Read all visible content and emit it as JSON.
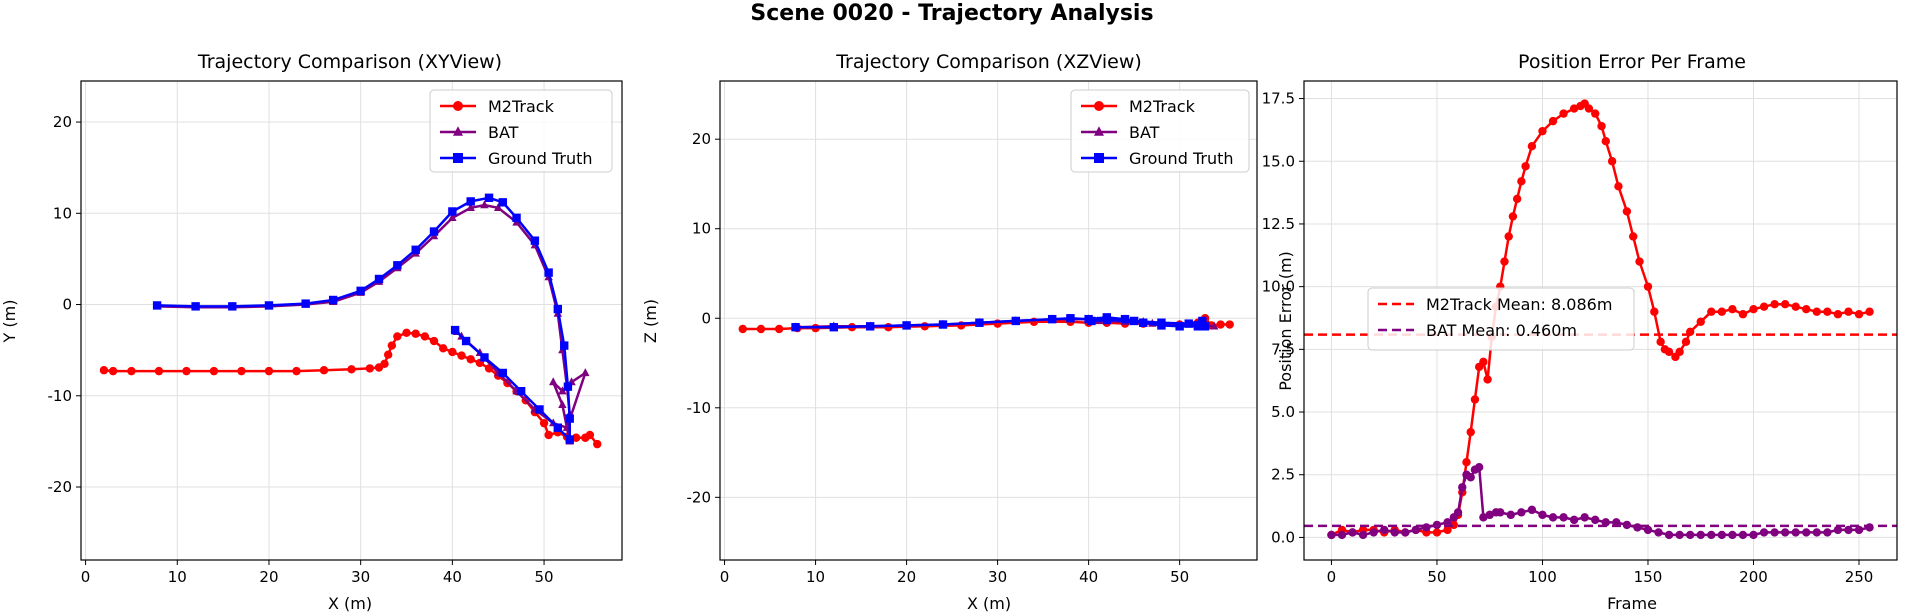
{
  "figure": {
    "title": "Scene 0020 - Trajectory Analysis"
  },
  "colors": {
    "m2track": "#ff0000",
    "bat": "#800080",
    "gt": "#0000ff",
    "grid": "#e0e0e0"
  },
  "chart_data": [
    {
      "type": "line",
      "title": "Trajectory Comparison (XYView)",
      "xlabel": "X (m)",
      "ylabel": "Y (m)",
      "xlim": [
        -0.5,
        58.5
      ],
      "ylim": [
        -28,
        24.5
      ],
      "xticks": [
        0,
        10,
        20,
        30,
        40,
        50
      ],
      "yticks": [
        -20,
        -10,
        0,
        10,
        20
      ],
      "grid": true,
      "legend": "top-right",
      "series": [
        {
          "name": "M2Track",
          "marker": "circle",
          "color": "#ff0000",
          "points": [
            [
              2,
              -7.2
            ],
            [
              3,
              -7.3
            ],
            [
              5,
              -7.3
            ],
            [
              8,
              -7.3
            ],
            [
              11,
              -7.3
            ],
            [
              14,
              -7.3
            ],
            [
              17,
              -7.3
            ],
            [
              20,
              -7.3
            ],
            [
              23,
              -7.3
            ],
            [
              26,
              -7.2
            ],
            [
              29,
              -7.1
            ],
            [
              31,
              -7.0
            ],
            [
              32,
              -6.9
            ],
            [
              32.6,
              -6.5
            ],
            [
              33,
              -5.5
            ],
            [
              33.4,
              -4.5
            ],
            [
              34,
              -3.5
            ],
            [
              35,
              -3.1
            ],
            [
              36,
              -3.2
            ],
            [
              37,
              -3.5
            ],
            [
              38,
              -4.0
            ],
            [
              39,
              -4.8
            ],
            [
              40,
              -5.2
            ],
            [
              41,
              -5.6
            ],
            [
              42,
              -6.0
            ],
            [
              43,
              -6.4
            ],
            [
              44,
              -7.0
            ],
            [
              45,
              -7.8
            ],
            [
              46,
              -8.6
            ],
            [
              47,
              -9.5
            ],
            [
              48,
              -10.5
            ],
            [
              49,
              -11.8
            ],
            [
              50,
              -13.0
            ],
            [
              50.5,
              -14.3
            ],
            [
              51.5,
              -14.0
            ],
            [
              52.5,
              -14.5
            ],
            [
              53.5,
              -14.6
            ],
            [
              54.5,
              -14.6
            ],
            [
              55,
              -14.3
            ],
            [
              55.8,
              -15.3
            ]
          ]
        },
        {
          "name": "BAT",
          "marker": "triangle",
          "color": "#800080",
          "points": [
            [
              7.8,
              -0.2
            ],
            [
              12,
              -0.3
            ],
            [
              16,
              -0.3
            ],
            [
              20,
              -0.2
            ],
            [
              24,
              0.0
            ],
            [
              27,
              0.3
            ],
            [
              30,
              1.3
            ],
            [
              32,
              2.5
            ],
            [
              34,
              4.0
            ],
            [
              36,
              5.6
            ],
            [
              38,
              7.5
            ],
            [
              40,
              9.5
            ],
            [
              42,
              10.6
            ],
            [
              43.5,
              10.9
            ],
            [
              45,
              10.6
            ],
            [
              47,
              9.0
            ],
            [
              49,
              6.5
            ],
            [
              50.5,
              3.0
            ],
            [
              51.5,
              -1.0
            ],
            [
              52,
              -5.0
            ],
            [
              52.5,
              -9.0
            ],
            [
              52.8,
              -12.0
            ],
            [
              52.8,
              -15.0
            ],
            [
              52,
              -11.0
            ],
            [
              51,
              -8.5
            ],
            [
              52,
              -9.5
            ],
            [
              53,
              -8.5
            ],
            [
              54.5,
              -7.5
            ],
            [
              52.5,
              -13.5
            ],
            [
              51,
              -13.0
            ],
            [
              49,
              -11.5
            ],
            [
              47,
              -9.5
            ],
            [
              45,
              -7.5
            ],
            [
              43,
              -5.3
            ],
            [
              41,
              -3.5
            ],
            [
              40.5,
              -3.0
            ]
          ]
        },
        {
          "name": "Ground Truth",
          "marker": "square",
          "color": "#0000ff",
          "points": [
            [
              7.8,
              -0.1
            ],
            [
              12,
              -0.2
            ],
            [
              16,
              -0.2
            ],
            [
              20,
              -0.1
            ],
            [
              24,
              0.1
            ],
            [
              27,
              0.5
            ],
            [
              30,
              1.5
            ],
            [
              32,
              2.8
            ],
            [
              34,
              4.3
            ],
            [
              36,
              6.0
            ],
            [
              38,
              8.0
            ],
            [
              40,
              10.2
            ],
            [
              42,
              11.3
            ],
            [
              44,
              11.7
            ],
            [
              45.5,
              11.2
            ],
            [
              47,
              9.5
            ],
            [
              49,
              7.0
            ],
            [
              50.5,
              3.5
            ],
            [
              51.5,
              -0.5
            ],
            [
              52.2,
              -4.5
            ],
            [
              52.6,
              -9.0
            ],
            [
              52.8,
              -12.5
            ],
            [
              52.8,
              -14.8
            ],
            [
              51.5,
              -13.5
            ],
            [
              49.5,
              -11.5
            ],
            [
              47.5,
              -9.5
            ],
            [
              45.5,
              -7.5
            ],
            [
              43.5,
              -5.8
            ],
            [
              41.5,
              -4.0
            ],
            [
              40.3,
              -2.8
            ]
          ]
        }
      ]
    },
    {
      "type": "line",
      "title": "Trajectory Comparison (XZView)",
      "xlabel": "X (m)",
      "ylabel": "Z (m)",
      "xlim": [
        -0.5,
        58.5
      ],
      "ylim": [
        -27,
        26.5
      ],
      "xticks": [
        0,
        10,
        20,
        30,
        40,
        50
      ],
      "yticks": [
        -20,
        -10,
        0,
        10,
        20
      ],
      "grid": true,
      "legend": "top-right",
      "series": [
        {
          "name": "M2Track",
          "marker": "circle",
          "color": "#ff0000",
          "points": [
            [
              2,
              -1.2
            ],
            [
              4,
              -1.2
            ],
            [
              6,
              -1.2
            ],
            [
              8,
              -1.1
            ],
            [
              10,
              -1.1
            ],
            [
              14,
              -1.0
            ],
            [
              18,
              -1.0
            ],
            [
              22,
              -0.9
            ],
            [
              26,
              -0.8
            ],
            [
              30,
              -0.6
            ],
            [
              34,
              -0.4
            ],
            [
              38,
              -0.4
            ],
            [
              40,
              -0.5
            ],
            [
              42,
              -0.5
            ],
            [
              44,
              -0.6
            ],
            [
              46,
              -0.6
            ],
            [
              48,
              -0.7
            ],
            [
              50,
              -0.7
            ],
            [
              52,
              -0.5
            ],
            [
              52.8,
              0.0
            ],
            [
              53.5,
              -0.8
            ],
            [
              54.5,
              -0.7
            ],
            [
              55.5,
              -0.7
            ]
          ]
        },
        {
          "name": "BAT",
          "marker": "triangle",
          "color": "#800080",
          "points": [
            [
              7.8,
              -1.0
            ],
            [
              12,
              -0.9
            ],
            [
              16,
              -0.9
            ],
            [
              20,
              -0.8
            ],
            [
              24,
              -0.7
            ],
            [
              28,
              -0.5
            ],
            [
              32,
              -0.3
            ],
            [
              36,
              -0.1
            ],
            [
              40,
              -0.1
            ],
            [
              42,
              0.0
            ],
            [
              44,
              -0.1
            ],
            [
              46,
              -0.4
            ],
            [
              48,
              -0.7
            ],
            [
              50,
              -0.8
            ],
            [
              52,
              -0.8
            ],
            [
              53.8,
              -0.9
            ],
            [
              52.5,
              -0.8
            ],
            [
              50,
              -0.7
            ],
            [
              47,
              -0.6
            ],
            [
              44,
              -0.4
            ],
            [
              41,
              -0.3
            ]
          ]
        },
        {
          "name": "Ground Truth",
          "marker": "square",
          "color": "#0000ff",
          "points": [
            [
              7.8,
              -1.0
            ],
            [
              12,
              -1.0
            ],
            [
              16,
              -0.9
            ],
            [
              20,
              -0.8
            ],
            [
              24,
              -0.7
            ],
            [
              28,
              -0.5
            ],
            [
              32,
              -0.3
            ],
            [
              36,
              -0.1
            ],
            [
              38,
              0.0
            ],
            [
              40,
              -0.1
            ],
            [
              42,
              0.1
            ],
            [
              44,
              -0.1
            ],
            [
              46,
              -0.5
            ],
            [
              48,
              -0.8
            ],
            [
              50,
              -0.9
            ],
            [
              52,
              -0.9
            ],
            [
              52.8,
              -0.9
            ],
            [
              52.5,
              -0.3
            ],
            [
              51,
              -0.6
            ],
            [
              48,
              -0.5
            ],
            [
              45,
              -0.3
            ],
            [
              42,
              -0.2
            ],
            [
              40.3,
              -0.3
            ]
          ]
        }
      ]
    },
    {
      "type": "line",
      "title": "Position Error Per Frame",
      "xlabel": "Frame",
      "ylabel": "Position Error (m)",
      "xlim": [
        -13,
        268
      ],
      "ylim": [
        -0.9,
        18.2
      ],
      "xticks": [
        0,
        50,
        100,
        150,
        200,
        250
      ],
      "yticks": [
        0.0,
        2.5,
        5.0,
        7.5,
        10.0,
        12.5,
        15.0,
        17.5
      ],
      "ytick_labels": [
        "0.0",
        "2.5",
        "5.0",
        "7.5",
        "10.0",
        "12.5",
        "15.0",
        "17.5"
      ],
      "grid": true,
      "legend": "center-left",
      "series": [
        {
          "name": "M2Track",
          "marker": "circle",
          "color": "#ff0000",
          "x": [
            0,
            5,
            10,
            15,
            20,
            25,
            30,
            35,
            40,
            45,
            50,
            55,
            58,
            60,
            62,
            64,
            66,
            68,
            70,
            72,
            74,
            76,
            78,
            80,
            82,
            84,
            86,
            88,
            90,
            92,
            95,
            100,
            105,
            110,
            115,
            118,
            120,
            122,
            125,
            128,
            130,
            133,
            136,
            140,
            143,
            146,
            150,
            153,
            156,
            158,
            160,
            163,
            165,
            168,
            170,
            175,
            180,
            185,
            190,
            195,
            200,
            205,
            210,
            215,
            220,
            225,
            230,
            235,
            240,
            245,
            250,
            255
          ],
          "y": [
            0.1,
            0.3,
            0.2,
            0.3,
            0.3,
            0.2,
            0.3,
            0.2,
            0.3,
            0.2,
            0.2,
            0.3,
            0.5,
            0.9,
            1.8,
            3.0,
            4.2,
            5.5,
            6.8,
            7.0,
            6.3,
            8.0,
            9.2,
            10.0,
            11.0,
            12.0,
            12.8,
            13.5,
            14.2,
            14.8,
            15.6,
            16.2,
            16.6,
            16.9,
            17.1,
            17.2,
            17.3,
            17.1,
            16.9,
            16.4,
            15.8,
            15.0,
            14.0,
            13.0,
            12.0,
            11.0,
            10.0,
            9.0,
            7.8,
            7.5,
            7.4,
            7.2,
            7.4,
            7.8,
            8.2,
            8.6,
            9.0,
            9.0,
            9.1,
            8.9,
            9.1,
            9.2,
            9.3,
            9.3,
            9.2,
            9.1,
            9.0,
            9.0,
            8.9,
            9.0,
            8.9,
            9.0
          ]
        },
        {
          "name": "BAT",
          "marker": "circle",
          "color": "#800080",
          "x": [
            0,
            5,
            10,
            15,
            20,
            25,
            30,
            35,
            40,
            45,
            50,
            55,
            58,
            60,
            62,
            64,
            66,
            68,
            70,
            72,
            75,
            78,
            80,
            85,
            90,
            95,
            100,
            105,
            110,
            115,
            120,
            125,
            130,
            135,
            140,
            145,
            150,
            155,
            160,
            165,
            170,
            175,
            180,
            185,
            190,
            195,
            200,
            205,
            210,
            215,
            220,
            225,
            230,
            235,
            240,
            245,
            250,
            255
          ],
          "y": [
            0.1,
            0.1,
            0.2,
            0.1,
            0.2,
            0.3,
            0.2,
            0.2,
            0.3,
            0.4,
            0.5,
            0.6,
            0.8,
            1.0,
            2.0,
            2.5,
            2.4,
            2.7,
            2.8,
            0.8,
            0.9,
            1.0,
            1.0,
            0.9,
            1.0,
            1.1,
            0.9,
            0.8,
            0.8,
            0.7,
            0.8,
            0.7,
            0.6,
            0.6,
            0.5,
            0.4,
            0.3,
            0.2,
            0.1,
            0.1,
            0.1,
            0.1,
            0.1,
            0.1,
            0.1,
            0.1,
            0.1,
            0.2,
            0.2,
            0.2,
            0.2,
            0.2,
            0.2,
            0.2,
            0.3,
            0.3,
            0.3,
            0.4
          ]
        }
      ],
      "hlines": [
        {
          "label": "M2Track Mean: 8.086m",
          "y": 8.086,
          "color": "#ff0000"
        },
        {
          "label": "BAT Mean: 0.460m",
          "y": 0.46,
          "color": "#800080"
        }
      ]
    }
  ]
}
